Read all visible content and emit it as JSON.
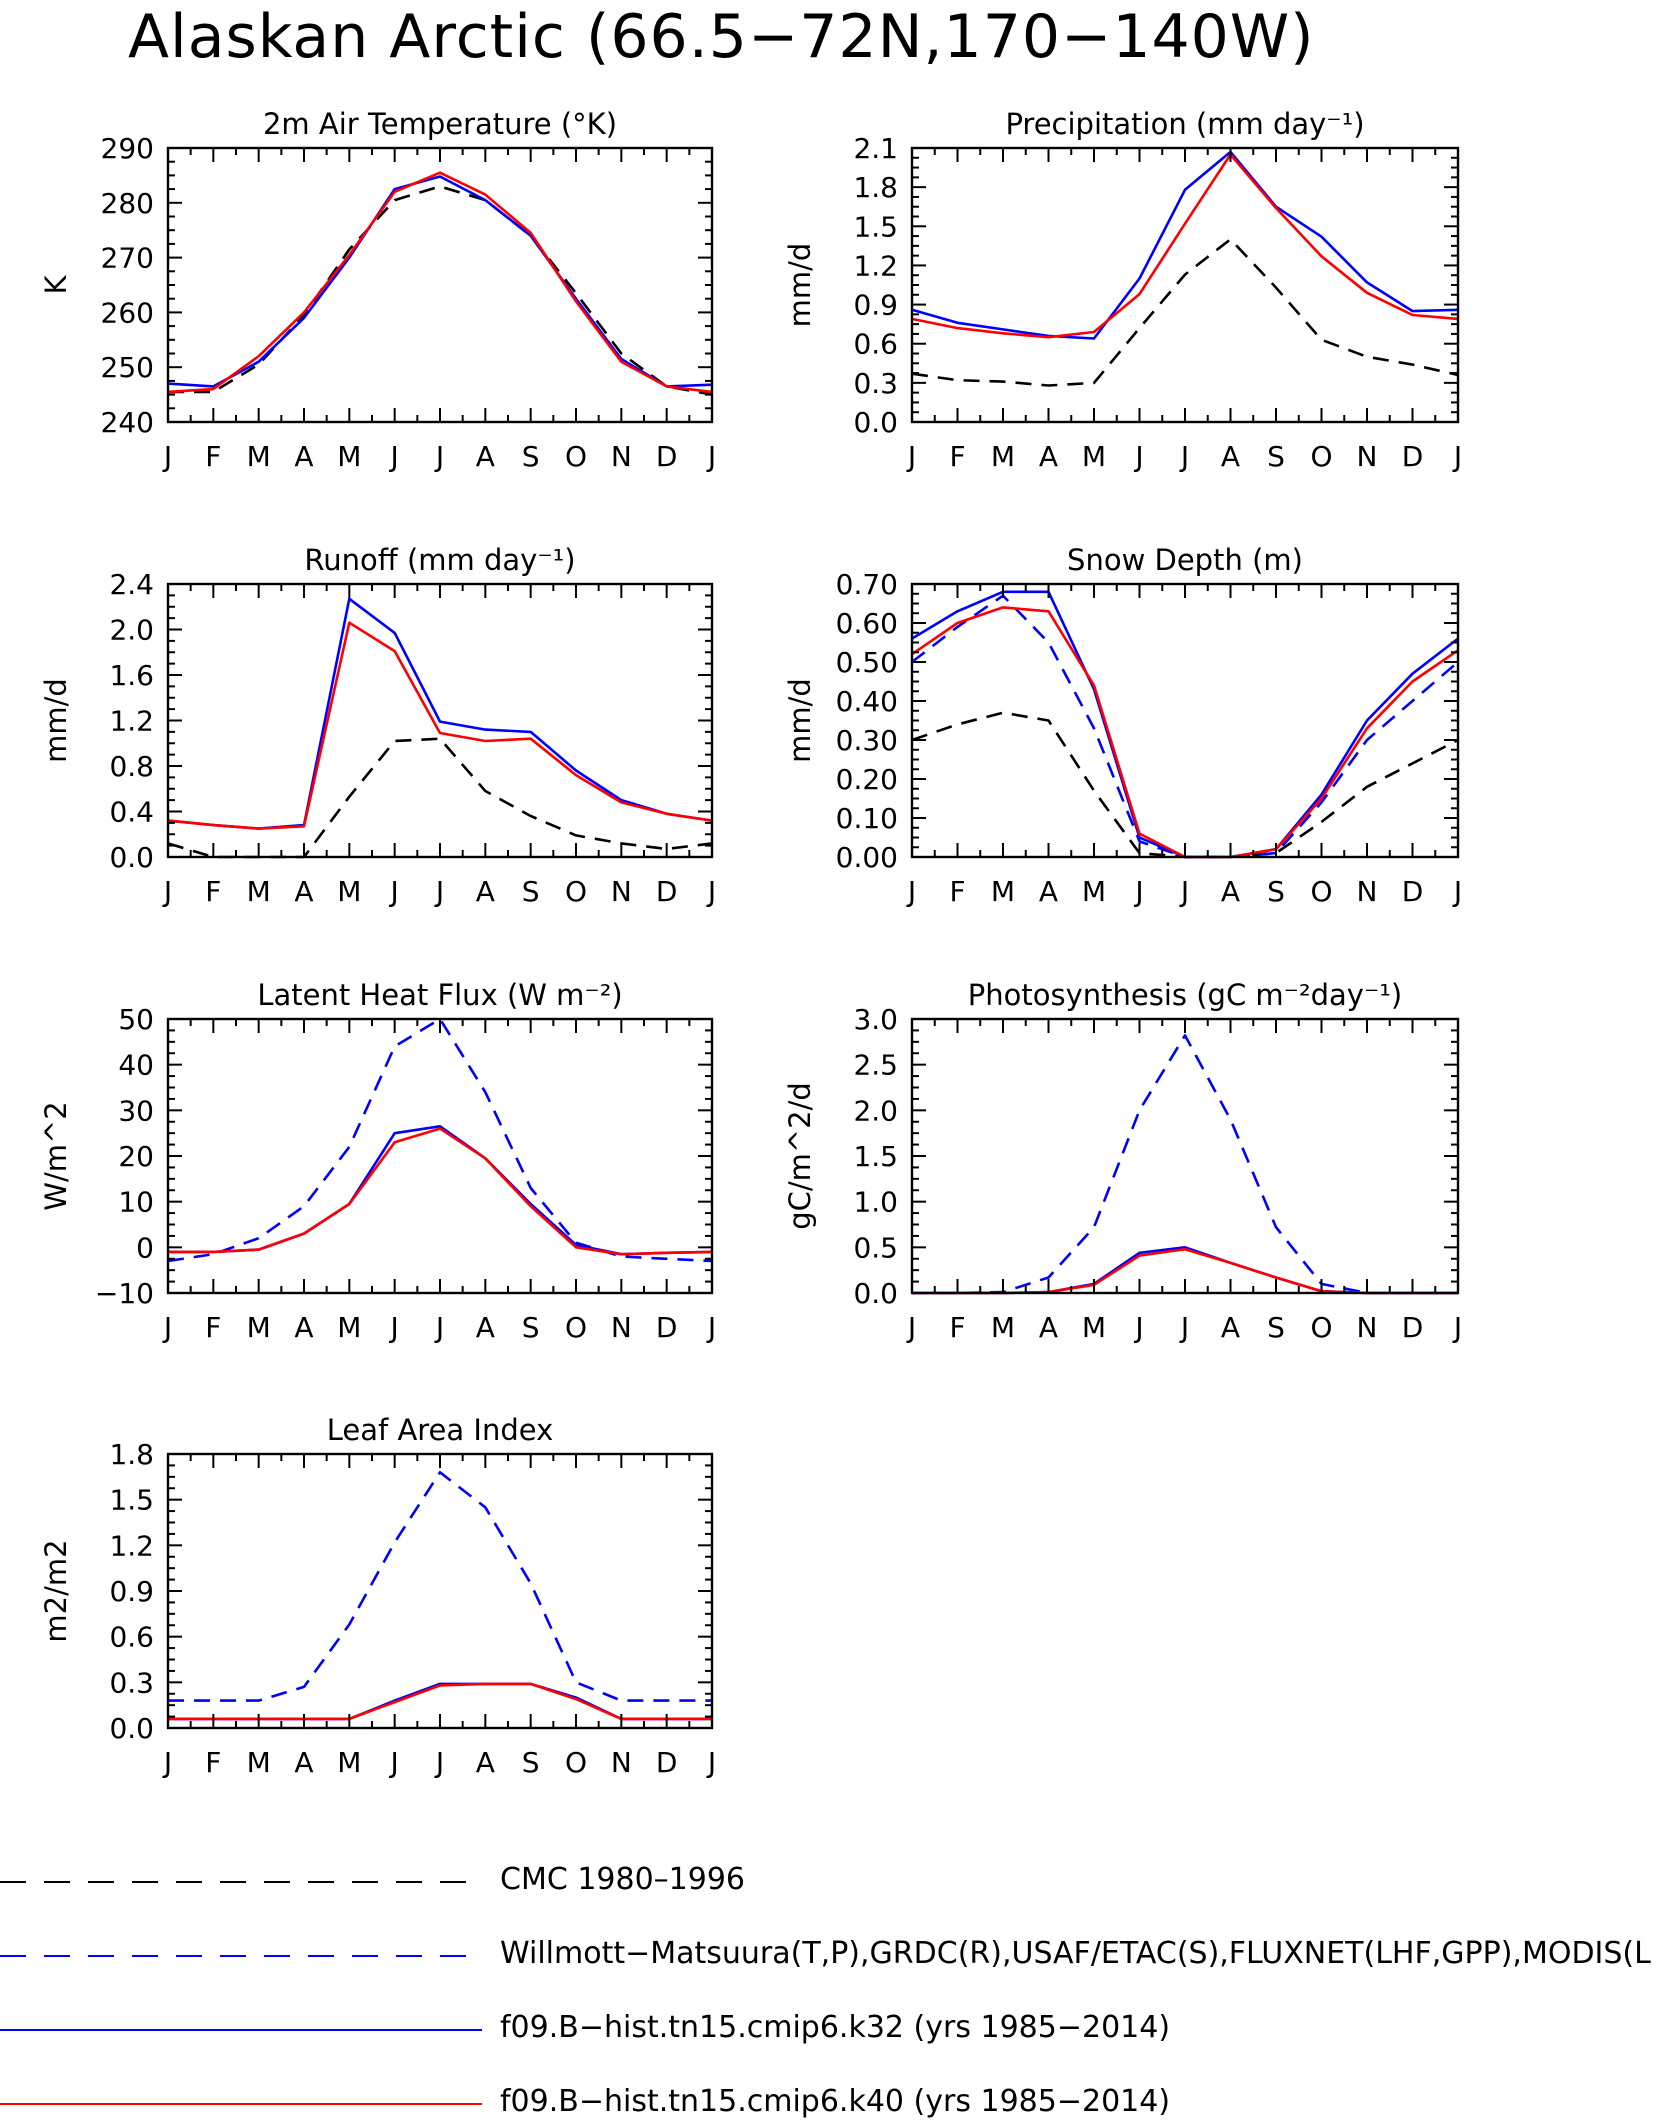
{
  "figure": {
    "title": "Alaskan Arctic (66.5−72N,170−140W)"
  },
  "legend": [
    {
      "label": "CMC 1980–1996",
      "color": "#000000",
      "dash": true
    },
    {
      "label": "Willmott−Matsuura(T,P),GRDC(R),USAF/ETAC(S),FLUXNET(LHF,GPP),MODIS(L",
      "color": "#0000ff",
      "dash": true
    },
    {
      "label": "f09.B−hist.tn15.cmip6.k32 (yrs 1985−2014)",
      "color": "#0000ff",
      "dash": false
    },
    {
      "label": "f09.B−hist.tn15.cmip6.k40 (yrs 1985−2014)",
      "color": "#ff0000",
      "dash": false
    }
  ],
  "chart_data": [
    {
      "type": "line",
      "title": "2m Air Temperature (°K)",
      "ylabel": "K",
      "categories": [
        "J",
        "F",
        "M",
        "A",
        "M",
        "J",
        "J",
        "A",
        "S",
        "O",
        "N",
        "D",
        "J"
      ],
      "ylim": [
        240,
        290
      ],
      "yticks": [
        "240",
        "250",
        "260",
        "270",
        "280",
        "290"
      ],
      "series": [
        {
          "name": "CMC 1980–1996",
          "color": "#000000",
          "dash": true,
          "values": [
            245.5,
            245.5,
            250.5,
            259.5,
            271.5,
            280.5,
            283,
            280.5,
            274,
            263.5,
            252.5,
            246.5,
            245
          ]
        },
        {
          "name": "k32",
          "color": "#0000ff",
          "dash": false,
          "values": [
            247,
            246.5,
            251,
            259,
            270,
            282.5,
            284.8,
            280.5,
            274,
            262.5,
            251.5,
            246.5,
            246.8
          ]
        },
        {
          "name": "k40",
          "color": "#ff0000",
          "dash": false,
          "values": [
            245.5,
            246,
            252,
            260,
            270.5,
            282,
            285.5,
            281.5,
            274.5,
            262,
            251,
            246.5,
            245.5
          ]
        }
      ]
    },
    {
      "type": "line",
      "title": "Precipitation (mm day⁻¹)",
      "ylabel": "mm/d",
      "categories": [
        "J",
        "F",
        "M",
        "A",
        "M",
        "J",
        "J",
        "A",
        "S",
        "O",
        "N",
        "D",
        "J"
      ],
      "ylim": [
        0,
        2.1
      ],
      "yticks": [
        "0.0",
        "0.3",
        "0.6",
        "0.9",
        "1.2",
        "1.5",
        "1.8",
        "2.1"
      ],
      "series": [
        {
          "name": "CMC 1980–1996",
          "color": "#000000",
          "dash": true,
          "values": [
            0.37,
            0.32,
            0.31,
            0.28,
            0.3,
            0.72,
            1.13,
            1.4,
            1.03,
            0.63,
            0.5,
            0.44,
            0.36
          ]
        },
        {
          "name": "k32",
          "color": "#0000ff",
          "dash": false,
          "values": [
            0.86,
            0.76,
            0.71,
            0.66,
            0.64,
            1.1,
            1.78,
            2.07,
            1.65,
            1.42,
            1.07,
            0.85,
            0.86
          ]
        },
        {
          "name": "k40",
          "color": "#ff0000",
          "dash": false,
          "values": [
            0.79,
            0.72,
            0.68,
            0.65,
            0.69,
            0.98,
            1.52,
            2.05,
            1.64,
            1.27,
            0.99,
            0.82,
            0.79
          ]
        }
      ]
    },
    {
      "type": "line",
      "title": "Runoff (mm day⁻¹)",
      "ylabel": "mm/d",
      "categories": [
        "J",
        "F",
        "M",
        "A",
        "M",
        "J",
        "J",
        "A",
        "S",
        "O",
        "N",
        "D",
        "J"
      ],
      "ylim": [
        0,
        2.4
      ],
      "yticks": [
        "0.0",
        "0.4",
        "0.8",
        "1.2",
        "1.6",
        "2.0",
        "2.4"
      ],
      "series": [
        {
          "name": "CMC 1980–1996",
          "color": "#000000",
          "dash": true,
          "values": [
            0.12,
            0.0,
            0.0,
            0.0,
            0.53,
            1.02,
            1.04,
            0.58,
            0.36,
            0.19,
            0.12,
            0.07,
            0.12
          ]
        },
        {
          "name": "k32",
          "color": "#0000ff",
          "dash": false,
          "values": [
            0.32,
            0.28,
            0.25,
            0.28,
            2.27,
            1.97,
            1.19,
            1.12,
            1.1,
            0.76,
            0.5,
            0.38,
            0.32
          ]
        },
        {
          "name": "k40",
          "color": "#ff0000",
          "dash": false,
          "values": [
            0.32,
            0.28,
            0.25,
            0.27,
            2.06,
            1.81,
            1.09,
            1.02,
            1.04,
            0.72,
            0.48,
            0.38,
            0.32
          ]
        }
      ]
    },
    {
      "type": "line",
      "title": "Snow Depth (m)",
      "ylabel": "mm/d",
      "categories": [
        "J",
        "F",
        "M",
        "A",
        "M",
        "J",
        "J",
        "A",
        "S",
        "O",
        "N",
        "D",
        "J"
      ],
      "ylim": [
        0,
        0.7
      ],
      "yticks": [
        "0.00",
        "0.10",
        "0.20",
        "0.30",
        "0.40",
        "0.50",
        "0.60",
        "0.70"
      ],
      "series": [
        {
          "name": "CMC 1980–1996",
          "color": "#000000",
          "dash": true,
          "values": [
            0.3,
            0.34,
            0.37,
            0.35,
            0.17,
            0.01,
            0.0,
            0.0,
            0.01,
            0.09,
            0.18,
            0.24,
            0.3
          ]
        },
        {
          "name": "Willmott−Matsuura",
          "color": "#0000ff",
          "dash": true,
          "values": [
            0.5,
            0.59,
            0.67,
            0.55,
            0.33,
            0.04,
            0.0,
            0.0,
            0.01,
            0.14,
            0.3,
            0.4,
            0.5
          ]
        },
        {
          "name": "k32",
          "color": "#0000ff",
          "dash": false,
          "values": [
            0.56,
            0.63,
            0.68,
            0.68,
            0.43,
            0.05,
            0.0,
            0.0,
            0.02,
            0.16,
            0.35,
            0.47,
            0.56
          ]
        },
        {
          "name": "k40",
          "color": "#ff0000",
          "dash": false,
          "values": [
            0.52,
            0.6,
            0.64,
            0.63,
            0.44,
            0.06,
            0.0,
            0.0,
            0.02,
            0.15,
            0.33,
            0.45,
            0.53
          ]
        }
      ]
    },
    {
      "type": "line",
      "title": "Latent Heat Flux (W m⁻²)",
      "ylabel": "W/m^2",
      "categories": [
        "J",
        "F",
        "M",
        "A",
        "M",
        "J",
        "J",
        "A",
        "S",
        "O",
        "N",
        "D",
        "J"
      ],
      "ylim": [
        -10,
        50
      ],
      "yticks": [
        "−10",
        "0",
        "10",
        "20",
        "30",
        "40",
        "50"
      ],
      "series": [
        {
          "name": "Willmott−Matsuura",
          "color": "#0000ff",
          "dash": true,
          "values": [
            -3,
            -1.5,
            2,
            9,
            22,
            44,
            50,
            34,
            13,
            1,
            -2,
            -2.5,
            -3
          ]
        },
        {
          "name": "k32",
          "color": "#0000ff",
          "dash": false,
          "values": [
            -1,
            -1,
            -0.5,
            3,
            9.5,
            25,
            26.5,
            19.5,
            9.5,
            0.5,
            -1.5,
            -1.2,
            -1
          ]
        },
        {
          "name": "k40",
          "color": "#ff0000",
          "dash": false,
          "values": [
            -1,
            -1,
            -0.5,
            3,
            9.5,
            23,
            26,
            19.5,
            9,
            0,
            -1.5,
            -1.2,
            -1
          ]
        }
      ]
    },
    {
      "type": "line",
      "title": "Photosynthesis (gC m⁻²day⁻¹)",
      "ylabel": "gC/m^2/d",
      "categories": [
        "J",
        "F",
        "M",
        "A",
        "M",
        "J",
        "J",
        "A",
        "S",
        "O",
        "N",
        "D",
        "J"
      ],
      "ylim": [
        0,
        3.0
      ],
      "yticks": [
        "0.0",
        "0.5",
        "1.0",
        "1.5",
        "2.0",
        "2.5",
        "3.0"
      ],
      "series": [
        {
          "name": "Willmott−Matsuura",
          "color": "#0000ff",
          "dash": true,
          "values": [
            0.0,
            0.0,
            0.01,
            0.17,
            0.72,
            2.0,
            2.82,
            1.9,
            0.72,
            0.1,
            0.0,
            0.0,
            0.0
          ]
        },
        {
          "name": "k32",
          "color": "#0000ff",
          "dash": false,
          "values": [
            0.0,
            0.0,
            0.0,
            0.01,
            0.1,
            0.44,
            0.5,
            0.33,
            0.17,
            0.02,
            0.0,
            0.0,
            0.0
          ]
        },
        {
          "name": "k40",
          "color": "#ff0000",
          "dash": false,
          "values": [
            0.0,
            0.0,
            0.0,
            0.01,
            0.09,
            0.41,
            0.48,
            0.33,
            0.17,
            0.02,
            0.0,
            0.0,
            0.0
          ]
        }
      ]
    },
    {
      "type": "line",
      "title": "Leaf Area Index",
      "ylabel": "m2/m2",
      "categories": [
        "J",
        "F",
        "M",
        "A",
        "M",
        "J",
        "J",
        "A",
        "S",
        "O",
        "N",
        "D",
        "J"
      ],
      "ylim": [
        0,
        1.8
      ],
      "yticks": [
        "0.0",
        "0.3",
        "0.6",
        "0.9",
        "1.2",
        "1.5",
        "1.8"
      ],
      "series": [
        {
          "name": "Willmott−Matsuura",
          "color": "#0000ff",
          "dash": true,
          "values": [
            0.18,
            0.18,
            0.18,
            0.27,
            0.68,
            1.22,
            1.68,
            1.45,
            0.95,
            0.3,
            0.18,
            0.18,
            0.18
          ]
        },
        {
          "name": "k32",
          "color": "#0000ff",
          "dash": false,
          "values": [
            0.06,
            0.06,
            0.06,
            0.06,
            0.06,
            0.18,
            0.29,
            0.29,
            0.29,
            0.2,
            0.06,
            0.06,
            0.06
          ]
        },
        {
          "name": "k40",
          "color": "#ff0000",
          "dash": false,
          "values": [
            0.06,
            0.06,
            0.06,
            0.06,
            0.06,
            0.17,
            0.28,
            0.29,
            0.29,
            0.19,
            0.06,
            0.06,
            0.06
          ]
        }
      ]
    }
  ]
}
